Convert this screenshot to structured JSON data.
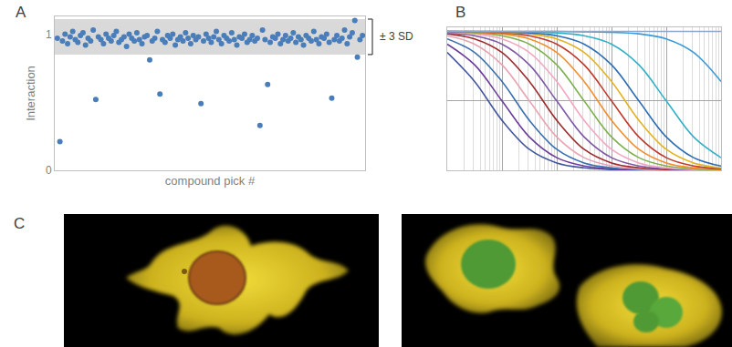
{
  "chart_data": [
    {
      "panel": "A",
      "type": "scatter",
      "marker": "circle",
      "color": "#4a7ebb",
      "xlabel": "compound pick #",
      "ylabel": "Interaction",
      "x": [
        1,
        2,
        3,
        4,
        5,
        6,
        7,
        8,
        9,
        10,
        11,
        12,
        13,
        14,
        15,
        16,
        17,
        18,
        19,
        20,
        21,
        22,
        23,
        24,
        25,
        26,
        27,
        28,
        29,
        30,
        31,
        32,
        33,
        34,
        35,
        36,
        37,
        38,
        39,
        40,
        41,
        42,
        43,
        44,
        45,
        46,
        47,
        48,
        49,
        50,
        51,
        52,
        53,
        54,
        55,
        56,
        57,
        58,
        59,
        60,
        61,
        62,
        63,
        64,
        65,
        66,
        67,
        68,
        69,
        70,
        71,
        72,
        73,
        74,
        75,
        76,
        77,
        78,
        79,
        80,
        81,
        82,
        83,
        84,
        85,
        86,
        87,
        88,
        89,
        90,
        91,
        92,
        93,
        94,
        95,
        96,
        97,
        98,
        99,
        100,
        101,
        102,
        103,
        104,
        105,
        106,
        107,
        108,
        109,
        110,
        111,
        112,
        113,
        114,
        115,
        116,
        117,
        118,
        119,
        120
      ],
      "values": [
        0.97,
        0.21,
        0.95,
        1.0,
        0.93,
        0.98,
        1.02,
        0.96,
        0.94,
        0.99,
        1.01,
        0.92,
        0.97,
        0.95,
        1.03,
        0.52,
        0.98,
        0.96,
        0.93,
        1.0,
        0.97,
        0.95,
        0.99,
        1.02,
        0.94,
        0.96,
        0.98,
        0.91,
        1.0,
        0.97,
        0.95,
        1.01,
        0.96,
        0.93,
        0.98,
        0.99,
        0.81,
        0.95,
        0.97,
        1.02,
        0.56,
        0.96,
        0.94,
        0.99,
        0.97,
        1.0,
        0.92,
        0.96,
        0.98,
        0.95,
        1.01,
        0.97,
        0.93,
        0.99,
        0.96,
        0.98,
        0.49,
        0.95,
        1.0,
        0.97,
        0.94,
        0.98,
        1.02,
        0.96,
        0.93,
        0.99,
        0.97,
        0.95,
        1.01,
        0.96,
        0.92,
        0.98,
        0.97,
        1.0,
        0.94,
        0.96,
        0.99,
        0.95,
        0.97,
        0.33,
        1.03,
        0.96,
        0.63,
        0.94,
        0.98,
        0.97,
        1.0,
        0.93,
        0.96,
        0.99,
        0.95,
        0.97,
        1.01,
        0.94,
        0.98,
        0.96,
        0.92,
        0.99,
        0.97,
        0.95,
        1.02,
        0.96,
        0.93,
        0.98,
        0.97,
        1.0,
        0.94,
        0.53,
        0.96,
        0.99,
        0.95,
        0.97,
        1.03,
        0.93,
        0.98,
        1.01,
        1.1,
        0.83,
        0.96,
        0.99
      ],
      "xlim": [
        0,
        121
      ],
      "xticks": [],
      "ylim": [
        0,
        1.13
      ],
      "yticks": [
        0,
        1
      ],
      "grid": false,
      "tick_labels": "y",
      "band": {
        "label": "± 3 SD",
        "range": [
          0.85,
          1.11
        ]
      }
    },
    {
      "panel": "B",
      "type": "line",
      "log": "x",
      "line_style": "smooth",
      "x": [
        0.01,
        0.0316,
        0.1,
        0.316,
        1,
        3.16,
        10,
        31.6,
        100,
        316,
        1000
      ],
      "series": [
        {
          "color": "#44569e",
          "values": [
            0.849,
            0.64,
            0.36,
            0.151,
            0.053,
            0.018,
            0.006,
            0.002,
            0.001,
            0.0,
            0.0
          ]
        },
        {
          "color": "#6a3d9a",
          "values": [
            0.909,
            0.76,
            0.5,
            0.24,
            0.091,
            0.031,
            0.01,
            0.003,
            0.001,
            0.0,
            0.0
          ]
        },
        {
          "color": "#3a6fb0",
          "values": [
            0.947,
            0.849,
            0.64,
            0.36,
            0.151,
            0.053,
            0.018,
            0.006,
            0.002,
            0.001,
            0.0
          ]
        },
        {
          "color": "#e8a3b4",
          "values": [
            0.969,
            0.909,
            0.76,
            0.5,
            0.24,
            0.091,
            0.031,
            0.01,
            0.003,
            0.001,
            0.0
          ]
        },
        {
          "color": "#9e2a2b",
          "values": [
            0.983,
            0.947,
            0.849,
            0.64,
            0.36,
            0.151,
            0.053,
            0.018,
            0.006,
            0.002,
            0.001
          ]
        },
        {
          "color": "#7e57a6",
          "values": [
            0.99,
            0.969,
            0.909,
            0.76,
            0.5,
            0.24,
            0.091,
            0.031,
            0.01,
            0.003,
            0.001
          ]
        },
        {
          "color": "#f2a7c0",
          "values": [
            0.994,
            0.983,
            0.947,
            0.849,
            0.64,
            0.36,
            0.151,
            0.053,
            0.018,
            0.006,
            0.002
          ]
        },
        {
          "color": "#7fb04f",
          "values": [
            0.997,
            0.99,
            0.969,
            0.909,
            0.76,
            0.5,
            0.24,
            0.091,
            0.031,
            0.01,
            0.003
          ]
        },
        {
          "color": "#f28e2b",
          "values": [
            0.998,
            0.994,
            0.983,
            0.947,
            0.849,
            0.64,
            0.36,
            0.151,
            0.053,
            0.018,
            0.006
          ]
        },
        {
          "color": "#c0392b",
          "values": [
            0.999,
            0.997,
            0.99,
            0.969,
            0.909,
            0.76,
            0.5,
            0.24,
            0.091,
            0.031,
            0.01
          ]
        },
        {
          "color": "#e3b21f",
          "values": [
            1.0,
            0.998,
            0.994,
            0.983,
            0.947,
            0.849,
            0.64,
            0.36,
            0.151,
            0.053,
            0.018
          ]
        },
        {
          "color": "#2d6db5",
          "values": [
            1.0,
            0.999,
            0.997,
            0.99,
            0.969,
            0.909,
            0.76,
            0.5,
            0.24,
            0.091,
            0.031
          ]
        },
        {
          "color": "#31b0c8",
          "values": [
            1.0,
            1.0,
            0.999,
            0.997,
            0.99,
            0.969,
            0.909,
            0.76,
            0.5,
            0.24,
            0.091
          ]
        },
        {
          "color": "#3a9ad9",
          "values": [
            1.0,
            1.0,
            1.0,
            1.0,
            1.0,
            0.998,
            0.994,
            0.983,
            0.947,
            0.849,
            0.64
          ]
        },
        {
          "color": "#8fa8c8",
          "values": [
            1.0,
            1.0,
            1.0,
            1.0,
            1.0,
            1.0,
            1.0,
            1.0,
            1.0,
            1.0,
            1.0
          ]
        }
      ],
      "xlim": [
        0.01,
        1000
      ],
      "xticks": [
        0.01,
        0.1,
        1,
        10,
        100,
        1000
      ],
      "ylim": [
        0,
        1.03
      ],
      "yticks": [
        0,
        0.5,
        1
      ],
      "grid": true,
      "tick_labels": false
    }
  ],
  "images": {
    "panel": "C"
  }
}
